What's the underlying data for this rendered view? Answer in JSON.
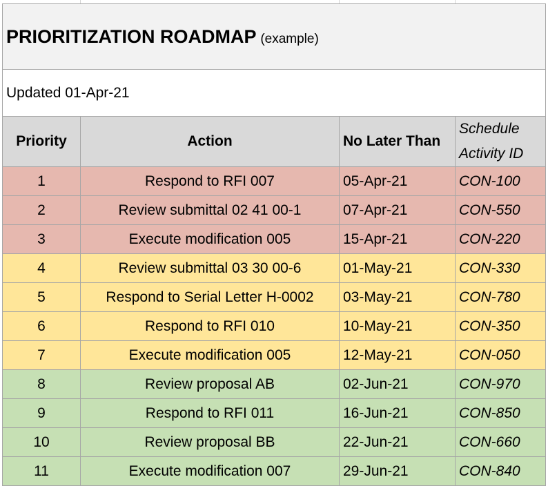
{
  "header": {
    "title": "PRIORITIZATION ROADMAP",
    "subtitle": "(example)"
  },
  "updated": "Updated 01-Apr-21",
  "table": {
    "columns": [
      "Priority",
      "Action",
      "No Later Than",
      "Schedule Activity ID"
    ],
    "rows": [
      {
        "color": "#e6b8af",
        "cells": [
          1,
          "Respond to RFI 007",
          "05-Apr-21",
          "CON-100"
        ]
      },
      {
        "color": "#e6b8af",
        "cells": [
          2,
          "Review submittal 02 41 00-1",
          "07-Apr-21",
          "CON-550"
        ]
      },
      {
        "color": "#e6b8af",
        "cells": [
          3,
          "Execute modification 005",
          "15-Apr-21",
          "CON-220"
        ]
      },
      {
        "color": "#ffe699",
        "cells": [
          4,
          "Review submittal 03 30 00-6",
          "01-May-21",
          "CON-330"
        ]
      },
      {
        "color": "#ffe699",
        "cells": [
          5,
          "Respond to Serial Letter H-0002",
          "03-May-21",
          "CON-780"
        ]
      },
      {
        "color": "#ffe699",
        "cells": [
          6,
          "Respond to RFI 010",
          "10-May-21",
          "CON-350"
        ]
      },
      {
        "color": "#ffe699",
        "cells": [
          7,
          "Execute modification 005",
          "12-May-21",
          "CON-050"
        ]
      },
      {
        "color": "#c6e0b4",
        "cells": [
          8,
          "Review proposal AB",
          "02-Jun-21",
          "CON-970"
        ]
      },
      {
        "color": "#c6e0b4",
        "cells": [
          9,
          "Respond to RFI 011",
          "16-Jun-21",
          "CON-850"
        ]
      },
      {
        "color": "#c6e0b4",
        "cells": [
          10,
          "Review proposal BB",
          "22-Jun-21",
          "CON-660"
        ]
      },
      {
        "color": "#c6e0b4",
        "cells": [
          11,
          "Execute modification 007",
          "29-Jun-21",
          "CON-840"
        ]
      }
    ]
  }
}
